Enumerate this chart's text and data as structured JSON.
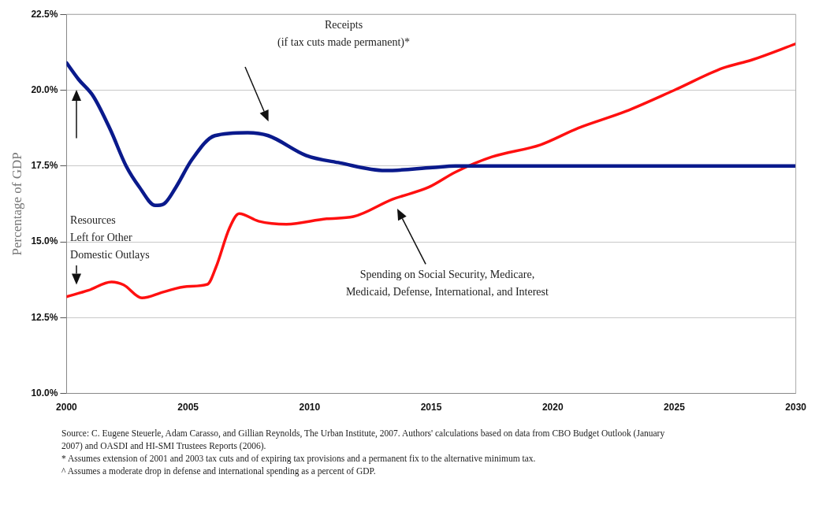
{
  "chart_data": {
    "type": "line",
    "ylabel": "Percentage of GDP",
    "xlim": [
      2000,
      2030
    ],
    "xticks": [
      2000,
      2005,
      2010,
      2015,
      2020,
      2025,
      2030
    ],
    "ylim": [
      10,
      22.5
    ],
    "yticks": [
      {
        "value": 10,
        "label": "10.0%"
      },
      {
        "value": 12.5,
        "label": "12.5%"
      },
      {
        "value": 15,
        "label": "15.0%"
      },
      {
        "value": 17.5,
        "label": "17.5%"
      },
      {
        "value": 20,
        "label": "20.0%"
      },
      {
        "value": 22.5,
        "label": "22.5%"
      }
    ],
    "grid": "y",
    "legend": false,
    "marker": "none",
    "line_style": "solid",
    "series": [
      {
        "color": "#0a1a8c",
        "x": [
          2000,
          2000.5,
          2001.1,
          2001.8,
          2002.45,
          2003.0,
          2003.65,
          2004.0,
          2004.5,
          2005.15,
          2006.1,
          2007.45,
          2008.3,
          2009.85,
          2011.25,
          2013.1,
          2015.05,
          2016,
          2020,
          2025,
          2030
        ],
        "values": [
          20.9,
          20.35,
          19.8,
          18.7,
          17.5,
          16.8,
          16.2,
          16.25,
          16.8,
          17.7,
          18.5,
          18.6,
          18.5,
          17.85,
          17.6,
          17.35,
          17.45,
          17.5,
          17.5,
          17.5,
          17.5
        ]
      },
      {
        "color": "#ff1010",
        "x": [
          2000,
          2000.9,
          2001.85,
          2002.35,
          2003.1,
          2004.0,
          2004.95,
          2005.8,
          2006.15,
          2006.7,
          2007.1,
          2007.9,
          2009.05,
          2010.7,
          2011.8,
          2013.4,
          2014.9,
          2016.0,
          2017.5,
          2019.5,
          2021.05,
          2023,
          2025,
          2027,
          2028.2,
          2030
        ],
        "values": [
          13.19,
          13.4,
          13.68,
          13.58,
          13.15,
          13.35,
          13.53,
          13.6,
          14.17,
          15.45,
          15.93,
          15.68,
          15.58,
          15.76,
          15.83,
          16.4,
          16.8,
          17.3,
          17.8,
          18.2,
          18.75,
          19.3,
          20.0,
          20.73,
          21.0,
          21.53
        ]
      }
    ],
    "annotations": [
      "Receipts\n(if tax cuts made permanent)*",
      "Spending on Social Security, Medicare,\nMedicaid, Defense, International, and Interest",
      "Resources\nLeft for Other\nDomestic Outlays",
      "Source:  C. Eugene Steuerle, Adam Carasso, and Gillian Reynolds, The Urban Institute, 2007.  Authors' calculations based on data from CBO Budget Outlook (January 2007) and OASDI and HI-SMI Trustees Reports (2006).",
      "* Assumes extension of 2001 and 2003 tax cuts and of expiring tax provisions and a permanent fix to the alternative minimum tax.",
      "^ Assumes a moderate drop in defense and international spending as a percent of GDP."
    ]
  }
}
